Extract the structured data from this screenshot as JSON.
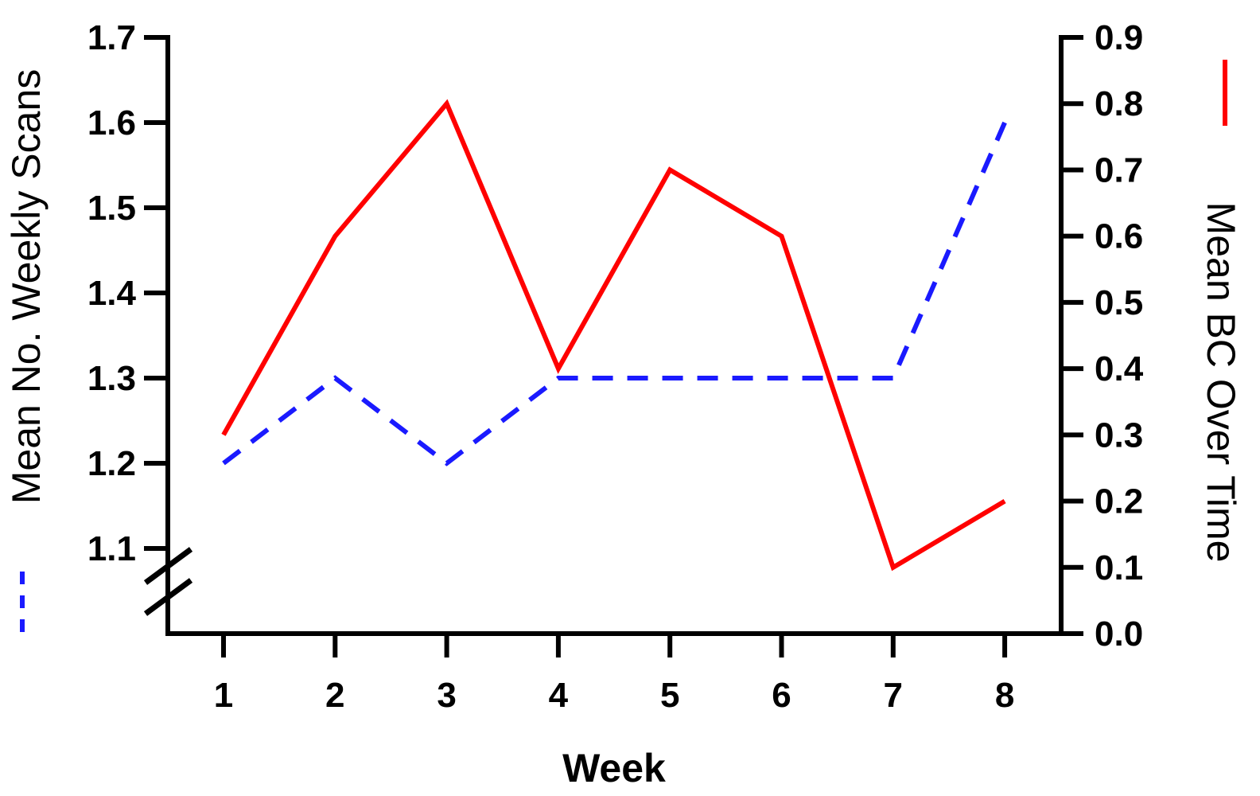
{
  "chart_data": {
    "type": "line",
    "x": [
      1,
      2,
      3,
      4,
      5,
      6,
      7,
      8
    ],
    "xlabel": "Week",
    "x_ticks": [
      "1",
      "2",
      "3",
      "4",
      "5",
      "6",
      "7",
      "8"
    ],
    "y_left": {
      "label": "Mean No. Weekly Scans",
      "lim": [
        1.0,
        1.7
      ],
      "ticks": [
        "1.1",
        "1.2",
        "1.3",
        "1.4",
        "1.5",
        "1.6",
        "1.7"
      ],
      "axis_break": true
    },
    "y_right": {
      "label": "Mean BC Over Time",
      "lim": [
        0.0,
        0.9
      ],
      "ticks": [
        "0.0",
        "0.1",
        "0.2",
        "0.3",
        "0.4",
        "0.5",
        "0.6",
        "0.7",
        "0.8",
        "0.9"
      ]
    },
    "series": [
      {
        "axis": "left",
        "style": "dashed",
        "color": "#1a1aff",
        "values": [
          1.2,
          1.3,
          1.2,
          1.3,
          1.3,
          1.3,
          1.3,
          1.6
        ]
      },
      {
        "axis": "right",
        "style": "solid",
        "color": "#ff0000",
        "values": [
          0.3,
          0.6,
          0.8,
          0.4,
          0.7,
          0.6,
          0.1,
          0.2
        ]
      }
    ],
    "grid": false
  }
}
